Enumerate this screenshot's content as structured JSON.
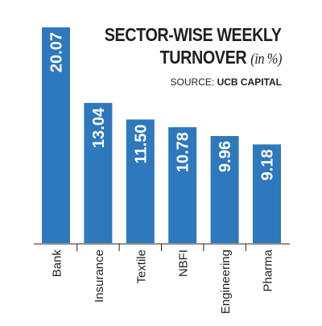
{
  "title": {
    "line1": "SECTOR-WISE WEEKLY",
    "line2": "TURNOVER",
    "unit": "(in %)"
  },
  "source": {
    "label": "SOURCE:",
    "name": "UCB CAPITAL"
  },
  "chart_data": {
    "type": "bar",
    "categories": [
      "Bank",
      "Insurance",
      "Textile",
      "NBFI",
      "Engineering",
      "Pharma"
    ],
    "values": [
      20.07,
      13.04,
      11.5,
      10.78,
      9.96,
      9.18
    ],
    "value_labels": [
      "20.07",
      "13.04",
      "11.50",
      "10.78",
      "9.96",
      "9.18"
    ],
    "title": "SECTOR-WISE WEEKLY TURNOVER (in %)",
    "xlabel": "",
    "ylabel": "",
    "ylim": [
      0,
      20.07
    ],
    "grid": false,
    "legend": "none",
    "bar_color": "#2e78bd",
    "label_color": "#ffffff"
  }
}
